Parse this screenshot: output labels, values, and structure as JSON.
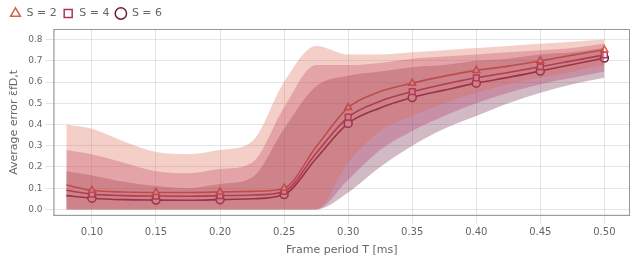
{
  "chart_data": {
    "type": "line",
    "xlabel": "Frame period T [ms]",
    "ylabel": "Average error ε̄fD,t",
    "xlim": [
      0.07,
      0.52
    ],
    "ylim": [
      -0.03,
      0.85
    ],
    "xticks": [
      {
        "value": 0.1,
        "label": "0.10"
      },
      0.15,
      {
        "value": 0.2,
        "label": "0.20"
      },
      0.25,
      {
        "value": 0.3,
        "label": "0.30"
      },
      0.35,
      {
        "value": 0.4,
        "label": "0.40"
      },
      0.45,
      {
        "value": 0.5,
        "label": "0.50"
      }
    ],
    "yticks": [
      {
        "value": 0.0,
        "label": "0.0"
      },
      0.1,
      0.2,
      0.3,
      0.4,
      0.5,
      0.6,
      0.7,
      0.8
    ],
    "grid": true,
    "legend": "upper left",
    "marker_x": [
      0.1,
      0.15,
      0.2,
      0.25,
      0.3,
      0.35,
      0.4,
      0.45,
      0.5
    ],
    "series": [
      {
        "name": "S = 2",
        "color": "#d9604a",
        "marker": "triangle",
        "x": [
          0.08,
          0.1,
          0.125,
          0.15,
          0.175,
          0.2,
          0.225,
          0.25,
          0.275,
          0.3,
          0.325,
          0.35,
          0.375,
          0.4,
          0.425,
          0.45,
          0.475,
          0.5
        ],
        "values": [
          0.115,
          0.09,
          0.082,
          0.08,
          0.08,
          0.082,
          0.085,
          0.1,
          0.295,
          0.48,
          0.555,
          0.595,
          0.628,
          0.655,
          0.675,
          0.7,
          0.727,
          0.752
        ],
        "lower": [
          0.0,
          0.0,
          0.0,
          0.0,
          0.0,
          0.0,
          0.0,
          0.0,
          0.0,
          0.22,
          0.37,
          0.44,
          0.5,
          0.55,
          0.59,
          0.62,
          0.65,
          0.68
        ],
        "upper": [
          0.4,
          0.38,
          0.32,
          0.27,
          0.26,
          0.28,
          0.32,
          0.6,
          0.77,
          0.73,
          0.73,
          0.74,
          0.75,
          0.76,
          0.77,
          0.78,
          0.79,
          0.8
        ]
      },
      {
        "name": "S = 4",
        "color": "#b03060",
        "marker": "square",
        "x": [
          0.08,
          0.1,
          0.125,
          0.15,
          0.175,
          0.2,
          0.225,
          0.25,
          0.275,
          0.3,
          0.325,
          0.35,
          0.375,
          0.4,
          0.425,
          0.45,
          0.475,
          0.5
        ],
        "values": [
          0.09,
          0.072,
          0.065,
          0.063,
          0.062,
          0.065,
          0.068,
          0.085,
          0.265,
          0.435,
          0.51,
          0.555,
          0.59,
          0.62,
          0.645,
          0.672,
          0.7,
          0.728
        ],
        "lower": [
          0.0,
          0.0,
          0.0,
          0.0,
          0.0,
          0.0,
          0.0,
          0.0,
          0.0,
          0.14,
          0.28,
          0.37,
          0.44,
          0.5,
          0.55,
          0.59,
          0.62,
          0.65
        ],
        "upper": [
          0.28,
          0.26,
          0.22,
          0.18,
          0.17,
          0.19,
          0.22,
          0.48,
          0.68,
          0.68,
          0.69,
          0.71,
          0.72,
          0.73,
          0.74,
          0.75,
          0.76,
          0.78
        ]
      },
      {
        "name": "S = 6",
        "color": "#6b1a3a",
        "marker": "circle",
        "x": [
          0.08,
          0.1,
          0.125,
          0.15,
          0.175,
          0.2,
          0.225,
          0.25,
          0.275,
          0.3,
          0.325,
          0.35,
          0.375,
          0.4,
          0.425,
          0.45,
          0.475,
          0.5
        ],
        "values": [
          0.065,
          0.053,
          0.046,
          0.044,
          0.043,
          0.046,
          0.05,
          0.07,
          0.24,
          0.405,
          0.478,
          0.527,
          0.562,
          0.595,
          0.622,
          0.652,
          0.683,
          0.713
        ],
        "lower": [
          0.0,
          0.0,
          0.0,
          0.0,
          0.0,
          0.0,
          0.0,
          0.0,
          0.0,
          0.08,
          0.2,
          0.3,
          0.38,
          0.44,
          0.5,
          0.55,
          0.59,
          0.62
        ],
        "upper": [
          0.18,
          0.16,
          0.13,
          0.11,
          0.1,
          0.12,
          0.15,
          0.38,
          0.58,
          0.63,
          0.65,
          0.67,
          0.68,
          0.7,
          0.71,
          0.73,
          0.74,
          0.76
        ]
      }
    ]
  }
}
